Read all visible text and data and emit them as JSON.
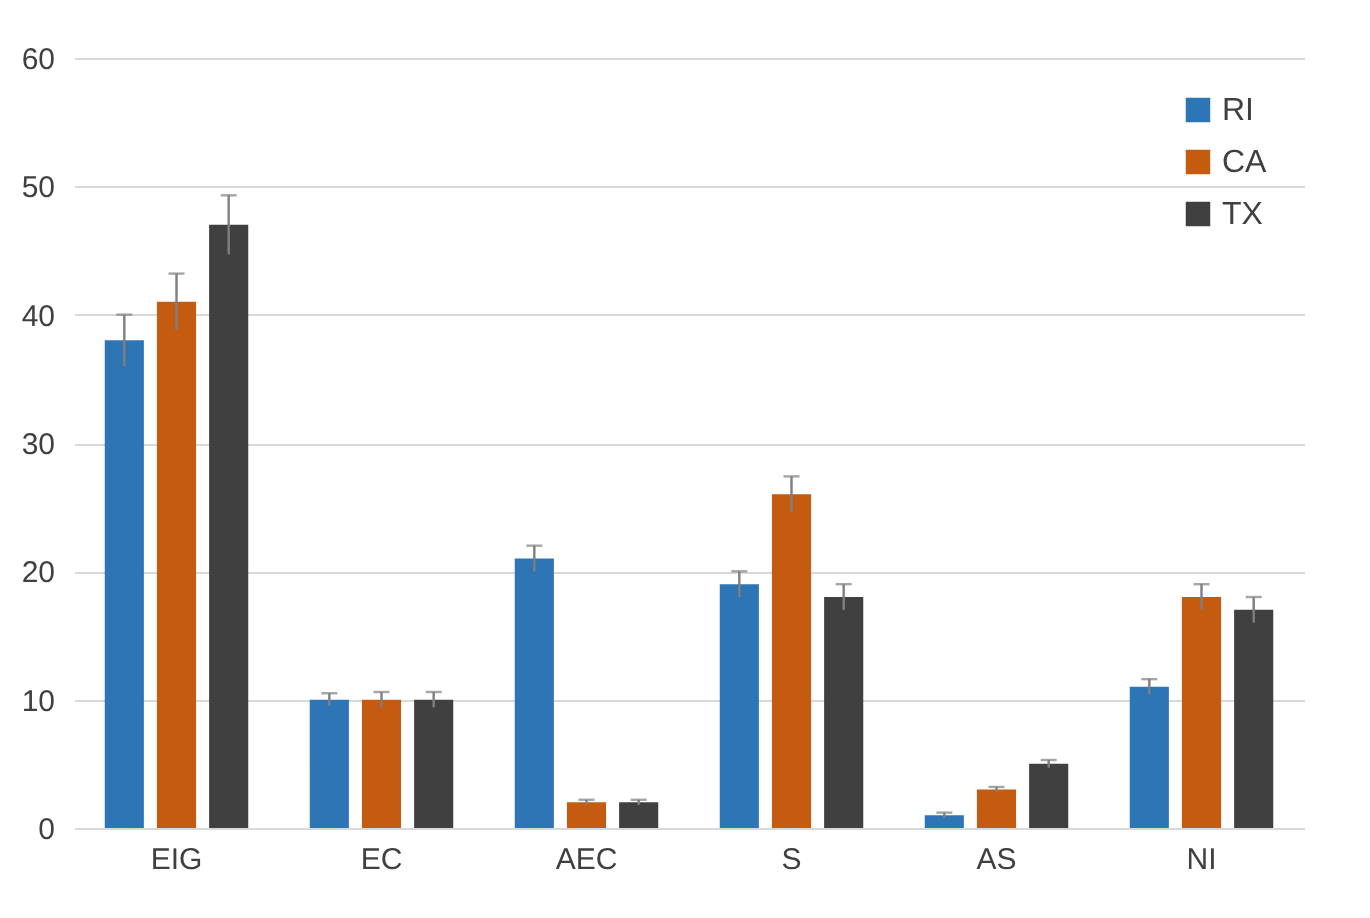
{
  "chart_data": {
    "type": "bar",
    "categories": [
      "EIG",
      "EC",
      "AEC",
      "S",
      "AS",
      "NI"
    ],
    "series": [
      {
        "name": "RI",
        "color": "#2e75b6",
        "values": [
          38,
          10,
          21,
          19,
          1,
          11
        ],
        "errors": [
          2,
          0.5,
          1,
          1,
          0.2,
          0.6
        ]
      },
      {
        "name": "CA",
        "color": "#c55a11",
        "values": [
          41,
          10,
          2,
          26,
          3,
          18
        ],
        "errors": [
          2.2,
          0.6,
          0.2,
          1.4,
          0.2,
          1
        ]
      },
      {
        "name": "TX",
        "color": "#404040",
        "values": [
          47,
          10,
          2,
          18,
          5,
          17
        ],
        "errors": [
          2.3,
          0.6,
          0.2,
          1,
          0.3,
          1
        ]
      }
    ],
    "ylim": [
      0,
      60
    ],
    "yticks": [
      0,
      10,
      20,
      30,
      40,
      50,
      60
    ],
    "grid": "y",
    "legend": "top right"
  }
}
